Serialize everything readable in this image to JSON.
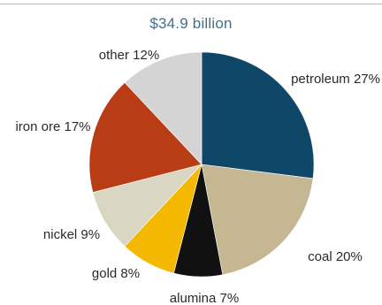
{
  "chart_data": {
    "type": "pie",
    "title": "$34.9 billion",
    "slices": [
      {
        "label": "petroleum 27%",
        "name": "petroleum",
        "value": 27,
        "color": "#0e4767"
      },
      {
        "label": "coal 20%",
        "name": "coal",
        "value": 20,
        "color": "#c5b791"
      },
      {
        "label": "alumina 7%",
        "name": "alumina",
        "value": 7,
        "color": "#111111"
      },
      {
        "label": "gold 8%",
        "name": "gold",
        "value": 8,
        "color": "#f5b800"
      },
      {
        "label": "nickel 9%",
        "name": "nickel",
        "value": 9,
        "color": "#d9d7c1"
      },
      {
        "label": "iron ore 17%",
        "name": "iron-ore",
        "value": 17,
        "color": "#b93d14"
      },
      {
        "label": "other 12%",
        "name": "other",
        "value": 12,
        "color": "#d4d4d4"
      }
    ],
    "start_angle_deg": 0,
    "direction": "clockwise",
    "legend": "none (direct labels)"
  }
}
